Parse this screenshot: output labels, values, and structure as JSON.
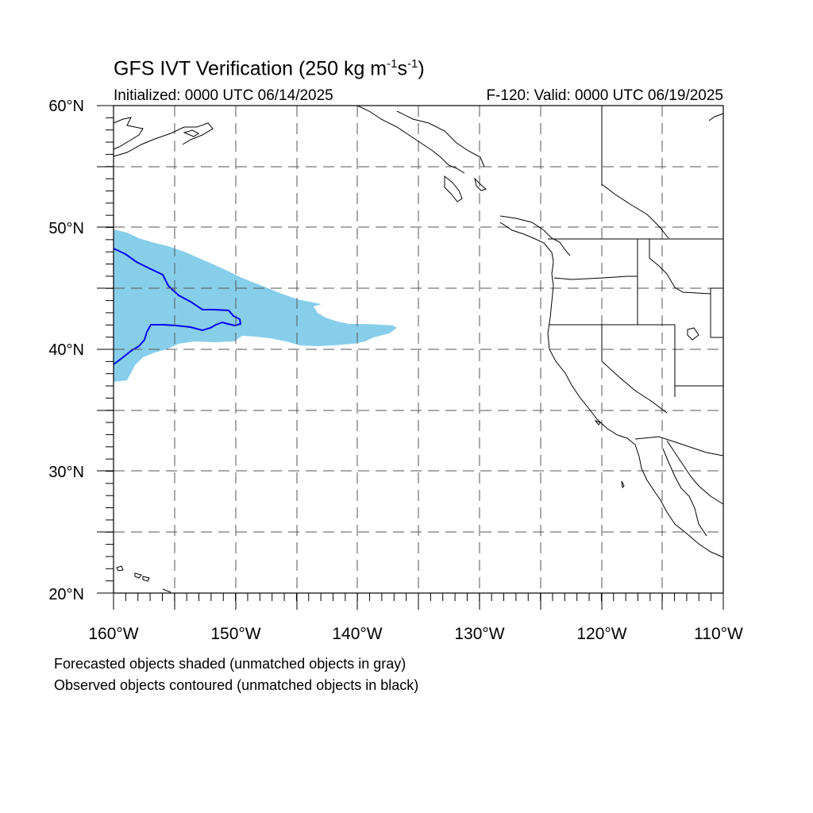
{
  "title": {
    "main": "GFS IVT Verification (250 kg m",
    "exp1": "-1",
    "mid": "s",
    "exp2": "-1",
    "close": ")"
  },
  "subtitle": {
    "initialized": "Initialized: 0000 UTC 06/14/2025",
    "valid": "F-120: Valid: 0000 UTC 06/19/2025"
  },
  "axes": {
    "lat_labels": [
      "60°N",
      "50°N",
      "40°N",
      "30°N",
      "20°N"
    ],
    "lon_labels": [
      "160°W",
      "150°W",
      "140°W",
      "130°W",
      "120°W",
      "110°W"
    ]
  },
  "colors": {
    "forecast_fill": "#87ceeb",
    "observed_contour": "#0000ff",
    "coastline": "#000000",
    "grid": "#555555"
  },
  "footnotes": [
    "Forecasted objects shaded (unmatched objects in gray)",
    "Observed objects contoured (unmatched objects in black)"
  ]
}
